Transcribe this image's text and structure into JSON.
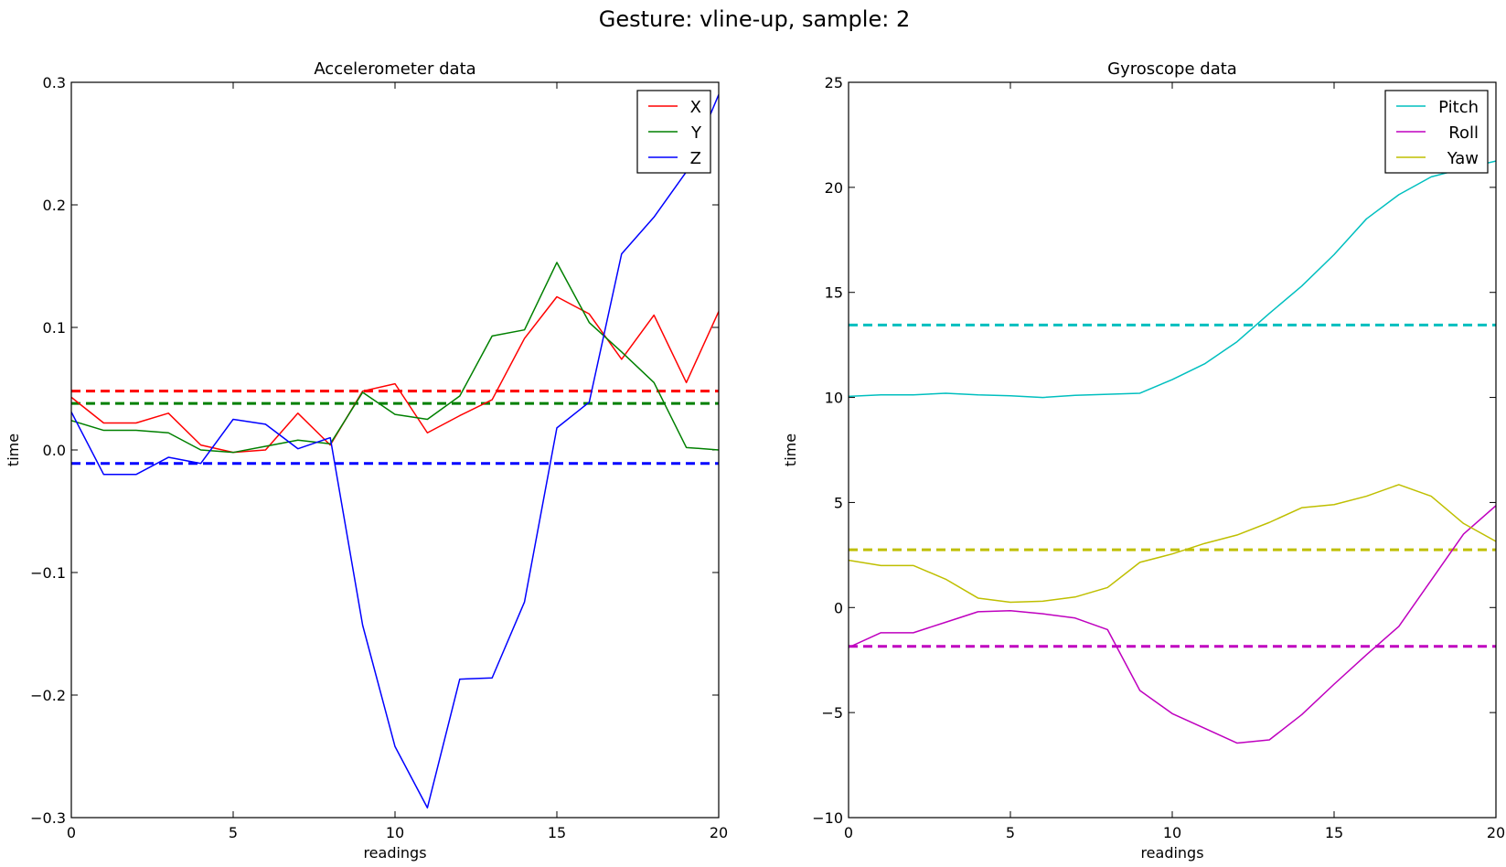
{
  "figure_title": "Gesture: vline-up, sample: 2",
  "chart_data": [
    {
      "type": "line",
      "title": "Accelerometer data",
      "xlabel": "readings",
      "ylabel": "time",
      "xlim": [
        0,
        20
      ],
      "ylim": [
        -0.3,
        0.3
      ],
      "xticks": [
        0,
        5,
        10,
        15,
        20
      ],
      "yticks": [
        -0.3,
        -0.2,
        -0.1,
        0.0,
        0.1,
        0.2,
        0.3
      ],
      "ytick_labels": [
        "−0.3",
        "−0.2",
        "−0.1",
        "0.0",
        "0.1",
        "0.2",
        "0.3"
      ],
      "grid": false,
      "legend_position": "top-right",
      "x": [
        0,
        1,
        2,
        3,
        4,
        5,
        6,
        7,
        8,
        9,
        10,
        11,
        12,
        13,
        14,
        15,
        16,
        17,
        18,
        19,
        20
      ],
      "series": [
        {
          "name": "X",
          "color": "#ff0000",
          "values": [
            0.043,
            0.022,
            0.022,
            0.03,
            0.004,
            -0.002,
            0.0,
            0.03,
            0.004,
            0.048,
            0.054,
            0.014,
            0.028,
            0.041,
            0.091,
            0.125,
            0.111,
            0.074,
            0.11,
            0.055,
            0.113
          ]
        },
        {
          "name": "Y",
          "color": "#008000",
          "values": [
            0.024,
            0.016,
            0.016,
            0.014,
            0.0,
            -0.002,
            0.003,
            0.008,
            0.005,
            0.047,
            0.029,
            0.025,
            0.044,
            0.093,
            0.098,
            0.153,
            0.104,
            0.08,
            0.055,
            0.002,
            0.0
          ]
        },
        {
          "name": "Z",
          "color": "#0000ff",
          "values": [
            0.031,
            -0.02,
            -0.02,
            -0.006,
            -0.011,
            0.025,
            0.021,
            0.001,
            0.01,
            -0.143,
            -0.242,
            -0.292,
            -0.187,
            -0.186,
            -0.124,
            0.018,
            0.039,
            0.16,
            0.19,
            0.227,
            0.29
          ]
        }
      ],
      "mean_lines": [
        {
          "series": "X",
          "color": "#ff0000",
          "value": 0.048
        },
        {
          "series": "Y",
          "color": "#008000",
          "value": 0.038
        },
        {
          "series": "Z",
          "color": "#0000ff",
          "value": -0.011
        }
      ]
    },
    {
      "type": "line",
      "title": "Gyroscope data",
      "xlabel": "readings",
      "ylabel": "time",
      "xlim": [
        0,
        20
      ],
      "ylim": [
        -10,
        25
      ],
      "xticks": [
        0,
        5,
        10,
        15,
        20
      ],
      "yticks": [
        -10,
        -5,
        0,
        5,
        10,
        15,
        20,
        25
      ],
      "ytick_labels": [
        "−10",
        "−5",
        "0",
        "5",
        "10",
        "15",
        "20",
        "25"
      ],
      "grid": false,
      "legend_position": "top-right",
      "x": [
        0,
        1,
        2,
        3,
        4,
        5,
        6,
        7,
        8,
        9,
        10,
        11,
        12,
        13,
        14,
        15,
        16,
        17,
        18,
        19,
        20
      ],
      "series": [
        {
          "name": "Pitch",
          "color": "#00bfbf",
          "values": [
            10.05,
            10.12,
            10.12,
            10.2,
            10.12,
            10.08,
            10.0,
            10.1,
            10.15,
            10.2,
            10.85,
            11.6,
            12.65,
            14.0,
            15.3,
            16.8,
            18.5,
            19.65,
            20.5,
            20.9,
            21.25
          ]
        },
        {
          "name": "Roll",
          "color": "#bf00bf",
          "values": [
            -1.9,
            -1.2,
            -1.2,
            -0.7,
            -0.2,
            -0.15,
            -0.3,
            -0.5,
            -1.05,
            -3.95,
            -5.05,
            -5.75,
            -6.45,
            -6.3,
            -5.1,
            -3.65,
            -2.25,
            -0.9,
            1.3,
            3.5,
            4.85
          ]
        },
        {
          "name": "Yaw",
          "color": "#bfbf00",
          "values": [
            2.25,
            2.0,
            2.0,
            1.35,
            0.45,
            0.25,
            0.3,
            0.5,
            0.95,
            2.15,
            2.55,
            3.05,
            3.45,
            4.05,
            4.75,
            4.9,
            5.3,
            5.85,
            5.3,
            4.0,
            3.15
          ]
        }
      ],
      "mean_lines": [
        {
          "series": "Pitch",
          "color": "#00bfbf",
          "value": 13.45
        },
        {
          "series": "Roll",
          "color": "#bf00bf",
          "value": -1.85
        },
        {
          "series": "Yaw",
          "color": "#bfbf00",
          "value": 2.75
        }
      ]
    }
  ]
}
